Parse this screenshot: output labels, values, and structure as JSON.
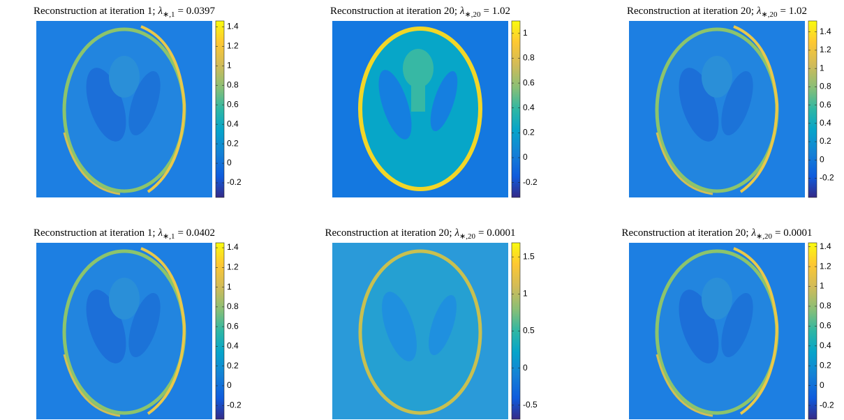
{
  "panels": [
    {
      "title": {
        "text": "Reconstruction at iteration 1;",
        "symbol": "λ",
        "subscript": "∗,1",
        "rhs": "= 0.0397"
      },
      "colorbar": {
        "lim": [
          -0.35,
          1.46
        ],
        "ticks": [
          -0.2,
          0,
          0.2,
          0.4,
          0.6,
          0.8,
          1,
          1.2,
          1.4
        ]
      }
    },
    {
      "title": {
        "text": "Reconstruction at iteration 20;",
        "symbol": "λ",
        "subscript": "∗,20",
        "rhs": "= 1.02"
      },
      "colorbar": {
        "lim": [
          -0.32,
          1.1
        ],
        "ticks": [
          -0.2,
          0,
          0.2,
          0.4,
          0.6,
          0.8,
          1
        ]
      }
    },
    {
      "title": {
        "text": "Reconstruction at iteration 20;",
        "symbol": "λ",
        "subscript": "∗,20",
        "rhs": "= 1.02"
      },
      "colorbar": {
        "lim": [
          -0.41,
          1.52
        ],
        "ticks": [
          -0.2,
          0,
          0.2,
          0.4,
          0.6,
          0.8,
          1,
          1.2,
          1.4
        ]
      }
    },
    {
      "title": {
        "text": "Reconstruction at iteration 1;",
        "symbol": "λ",
        "subscript": "∗,1",
        "rhs": "= 0.0402"
      },
      "colorbar": {
        "lim": [
          -0.34,
          1.45
        ],
        "ticks": [
          -0.2,
          0,
          0.2,
          0.4,
          0.6,
          0.8,
          1,
          1.2,
          1.4
        ]
      }
    },
    {
      "title": {
        "text": "Reconstruction at iteration 20;",
        "symbol": "λ",
        "subscript": "∗,20",
        "rhs": "= 0.0001"
      },
      "colorbar": {
        "lim": [
          -0.69,
          1.69
        ],
        "ticks": [
          -0.5,
          0,
          0.5,
          1,
          1.5
        ]
      }
    },
    {
      "title": {
        "text": "Reconstruction at iteration 20;",
        "symbol": "λ",
        "subscript": "∗,20",
        "rhs": "= 0.0001"
      },
      "colorbar": {
        "lim": [
          -0.34,
          1.44
        ],
        "ticks": [
          -0.2,
          0,
          0.2,
          0.4,
          0.6,
          0.8,
          1,
          1.2,
          1.4
        ]
      }
    }
  ]
}
